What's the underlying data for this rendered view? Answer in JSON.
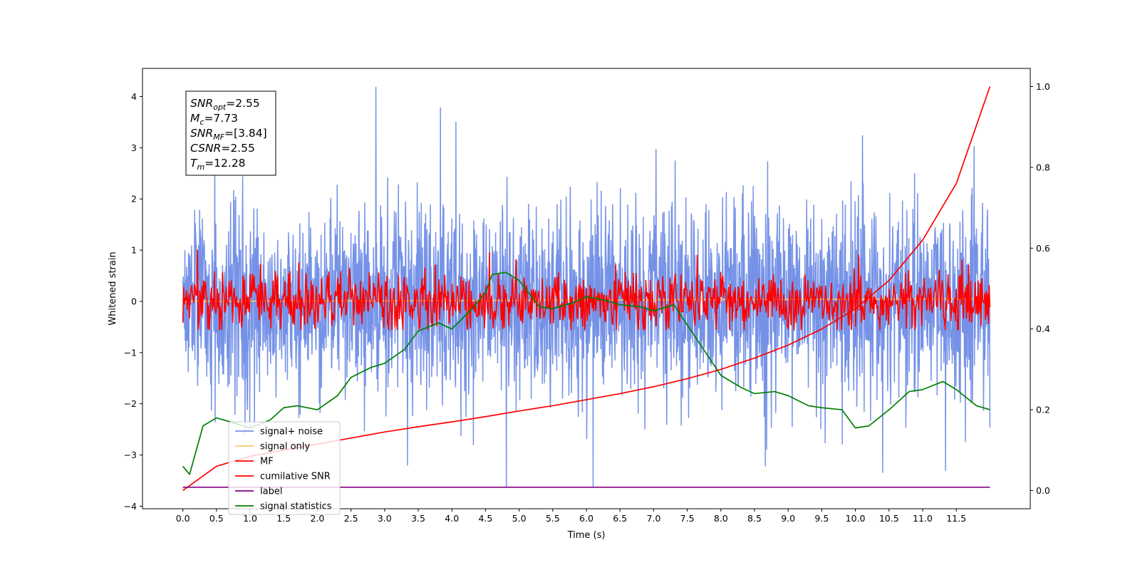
{
  "chart_data": {
    "type": "line",
    "title": "",
    "xlabel": "Time (s)",
    "ylabel": "Whitened strain",
    "y2label": "",
    "xlim": [
      -0.6,
      12.6
    ],
    "ylim": [
      -4.05,
      4.55
    ],
    "y2lim": [
      -0.045,
      1.045
    ],
    "xticks": [
      0.0,
      0.5,
      1.0,
      1.5,
      2.0,
      2.5,
      3.0,
      3.5,
      4.0,
      4.5,
      5.0,
      5.5,
      6.0,
      6.5,
      7.0,
      7.5,
      8.0,
      8.5,
      9.0,
      9.5,
      10.0,
      10.5,
      11.0,
      11.5
    ],
    "xtick_labels": [
      "0.0",
      "0.5",
      "1.0",
      "1.5",
      "2.0",
      "2.5",
      "3.0",
      "3.5",
      "4.0",
      "4.5",
      "5.0",
      "5.5",
      "6.0",
      "6.5",
      "7.0",
      "7.5",
      "8.0",
      "8.5",
      "9.0",
      "9.5",
      "10.0",
      "10.5",
      "11.0",
      "11.5"
    ],
    "yticks": [
      -4,
      -3,
      -2,
      -1,
      0,
      1,
      2,
      3,
      4
    ],
    "ytick_labels": [
      "−4",
      "−3",
      "−2",
      "−1",
      "0",
      "1",
      "2",
      "3",
      "4"
    ],
    "y2ticks": [
      0.0,
      0.2,
      0.4,
      0.6,
      0.8,
      1.0
    ],
    "y2tick_labels": [
      "0.0",
      "0.2",
      "0.4",
      "0.6",
      "0.8",
      "1.0"
    ],
    "grid": false,
    "legend_position": "lower-left",
    "annotation": {
      "lines": [
        {
          "base": "SNR",
          "sub": "opt",
          "value": "=2.55"
        },
        {
          "base": "M",
          "sub": "c",
          "value": "=7.73"
        },
        {
          "base": "SNR",
          "sub": "MF",
          "value": "=[3.84]"
        },
        {
          "base": "CSNR",
          "sub": "",
          "value": "=2.55"
        },
        {
          "base": "T",
          "sub": "m",
          "value": "=12.28"
        }
      ]
    },
    "series": [
      {
        "name": "signal+ noise",
        "color": "#7592e7",
        "axis": "left",
        "kind": "noise",
        "x_range": [
          0.0,
          12.0
        ],
        "mean": 0.0,
        "std": 0.95,
        "y_min": -3.63,
        "y_max": 4.18,
        "peaks": [
          [
            2.87,
            4.18
          ],
          [
            3.83,
            3.78
          ],
          [
            4.06,
            3.5
          ],
          [
            6.1,
            -3.63
          ],
          [
            4.81,
            -3.63
          ],
          [
            3.34,
            -3.2
          ],
          [
            11.34,
            -3.3
          ]
        ]
      },
      {
        "name": "signal only",
        "color": "#f5c96a",
        "axis": "left",
        "x": [
          0.0,
          12.0
        ],
        "y": [
          0.0,
          0.05
        ]
      },
      {
        "name": "MF",
        "color": "#ff0000",
        "axis": "left",
        "kind": "noise",
        "x_range": [
          0.0,
          12.0
        ],
        "mean": 0.0,
        "std": 0.28,
        "y_min": -0.6,
        "y_max": 1.0,
        "peaks": [
          [
            0.22,
            1.0
          ],
          [
            4.56,
            0.95
          ],
          [
            10.05,
            0.9
          ]
        ]
      },
      {
        "name": "cumilative SNR",
        "color": "#ff0000",
        "axis": "right",
        "x": [
          0.0,
          0.5,
          1.0,
          1.5,
          2.0,
          2.5,
          3.0,
          3.5,
          4.0,
          4.5,
          5.0,
          5.5,
          6.0,
          6.5,
          7.0,
          7.5,
          8.0,
          8.5,
          9.0,
          9.5,
          10.0,
          10.5,
          11.0,
          11.5,
          12.0
        ],
        "y": [
          0.0,
          0.06,
          0.085,
          0.1,
          0.115,
          0.13,
          0.145,
          0.158,
          0.17,
          0.183,
          0.197,
          0.21,
          0.225,
          0.24,
          0.257,
          0.277,
          0.3,
          0.328,
          0.36,
          0.4,
          0.45,
          0.52,
          0.62,
          0.76,
          1.0
        ]
      },
      {
        "name": "label",
        "color": "#800080",
        "axis": "left",
        "x": [
          0.0,
          12.0
        ],
        "y": [
          -3.63,
          -3.63
        ]
      },
      {
        "name": "signal statistics",
        "color": "#008000",
        "axis": "right",
        "x": [
          0.0,
          0.1,
          0.2,
          0.3,
          0.5,
          0.7,
          1.0,
          1.3,
          1.5,
          1.7,
          2.0,
          2.3,
          2.5,
          2.8,
          3.0,
          3.3,
          3.5,
          3.8,
          4.0,
          4.3,
          4.5,
          4.6,
          4.8,
          5.0,
          5.3,
          5.5,
          5.8,
          6.0,
          6.3,
          6.5,
          6.8,
          7.0,
          7.3,
          7.5,
          7.8,
          8.0,
          8.3,
          8.5,
          8.8,
          9.0,
          9.3,
          9.5,
          9.8,
          10.0,
          10.2,
          10.5,
          10.8,
          11.0,
          11.3,
          11.5,
          11.8,
          12.0
        ],
        "y": [
          0.06,
          0.04,
          0.1,
          0.16,
          0.18,
          0.17,
          0.155,
          0.175,
          0.205,
          0.21,
          0.2,
          0.235,
          0.28,
          0.305,
          0.315,
          0.35,
          0.395,
          0.415,
          0.4,
          0.45,
          0.49,
          0.535,
          0.54,
          0.52,
          0.455,
          0.45,
          0.465,
          0.48,
          0.47,
          0.46,
          0.455,
          0.445,
          0.46,
          0.41,
          0.335,
          0.285,
          0.255,
          0.24,
          0.245,
          0.235,
          0.21,
          0.205,
          0.2,
          0.155,
          0.16,
          0.2,
          0.245,
          0.25,
          0.27,
          0.25,
          0.21,
          0.2
        ]
      }
    ]
  }
}
